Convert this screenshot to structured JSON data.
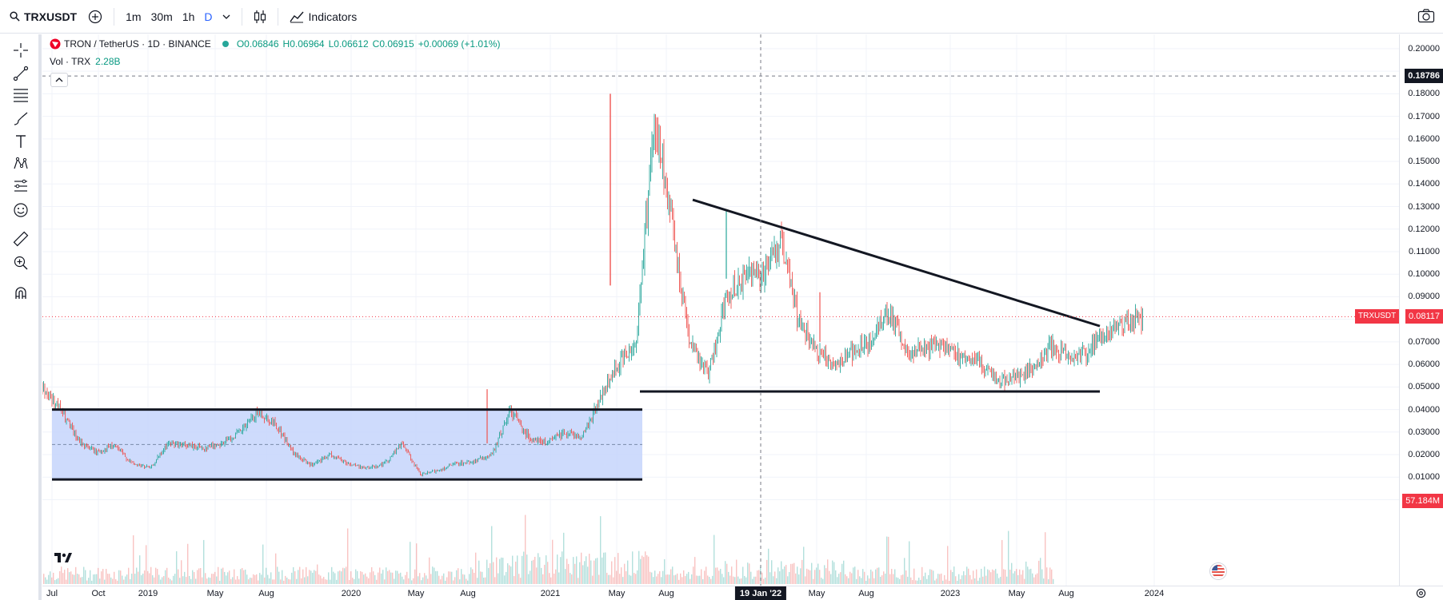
{
  "toolbar": {
    "symbol": "TRXUSDT",
    "intervals": [
      "1m",
      "30m",
      "1h",
      "D"
    ],
    "active_interval": "D",
    "indicators_label": "Indicators"
  },
  "legend": {
    "title": "TRON / TetherUS · 1D · BINANCE",
    "open": "O0.06846",
    "high": "H0.06964",
    "low": "L0.06612",
    "close": "C0.06915",
    "change": "+0.00069 (+1.01%)",
    "volume_label": "Vol · TRX",
    "volume_value": "2.28B"
  },
  "price_axis": {
    "ticks": [
      "0.20000",
      "0.18000",
      "0.17000",
      "0.16000",
      "0.15000",
      "0.14000",
      "0.13000",
      "0.12000",
      "0.11000",
      "0.10000",
      "0.09000",
      "0.07000",
      "0.06000",
      "0.05000",
      "0.04000",
      "0.03000",
      "0.02000",
      "0.01000",
      "-0.00000"
    ],
    "crosshair_price": "0.18786",
    "last_price": "0.08117",
    "symbol_tag": "TRXUSDT",
    "volume_tag": "57.184M"
  },
  "time_axis": {
    "ticks": [
      "Jul",
      "Oct",
      "2019",
      "May",
      "Aug",
      "2020",
      "May",
      "Aug",
      "2021",
      "May",
      "Aug",
      "May",
      "Aug",
      "2023",
      "May",
      "Aug",
      "2024"
    ],
    "crosshair_date": "19 Jan '22"
  },
  "colors": {
    "up": "#26a69a",
    "down": "#ef5350",
    "range_box": "#c5d5fb",
    "accent": "#2962ff",
    "tag": "#f23645"
  },
  "chart_data": {
    "type": "candlestick",
    "symbol": "TRXUSDT",
    "timeframe": "1D",
    "exchange": "BINANCE",
    "x_range": [
      "2018-06",
      "2024-03"
    ],
    "ylim": [
      -0.005,
      0.2
    ],
    "series": [
      {
        "name": "TRON / TetherUS",
        "approx_close": [
          [
            "2018-06",
            0.05
          ],
          [
            "2018-07",
            0.04
          ],
          [
            "2018-08",
            0.026
          ],
          [
            "2018-09",
            0.021
          ],
          [
            "2018-10",
            0.024
          ],
          [
            "2018-11",
            0.016
          ],
          [
            "2018-12",
            0.014
          ],
          [
            "2019-01",
            0.025
          ],
          [
            "2019-02",
            0.024
          ],
          [
            "2019-03",
            0.023
          ],
          [
            "2019-04",
            0.025
          ],
          [
            "2019-05",
            0.03
          ],
          [
            "2019-06",
            0.039
          ],
          [
            "2019-07",
            0.033
          ],
          [
            "2019-08",
            0.02
          ],
          [
            "2019-09",
            0.015
          ],
          [
            "2019-10",
            0.02
          ],
          [
            "2019-11",
            0.016
          ],
          [
            "2019-12",
            0.014
          ],
          [
            "2020-01",
            0.016
          ],
          [
            "2020-02",
            0.025
          ],
          [
            "2020-03",
            0.011
          ],
          [
            "2020-04",
            0.013
          ],
          [
            "2020-05",
            0.016
          ],
          [
            "2020-06",
            0.017
          ],
          [
            "2020-07",
            0.02
          ],
          [
            "2020-08",
            0.04
          ],
          [
            "2020-09",
            0.028
          ],
          [
            "2020-10",
            0.025
          ],
          [
            "2020-11",
            0.03
          ],
          [
            "2020-12",
            0.028
          ],
          [
            "2021-01",
            0.045
          ],
          [
            "2021-02",
            0.06
          ],
          [
            "2021-03",
            0.07
          ],
          [
            "2021-04",
            0.17
          ],
          [
            "2021-05",
            0.12
          ],
          [
            "2021-06",
            0.07
          ],
          [
            "2021-07",
            0.055
          ],
          [
            "2021-08",
            0.09
          ],
          [
            "2021-09",
            0.1
          ],
          [
            "2021-10",
            0.1
          ],
          [
            "2021-11",
            0.115
          ],
          [
            "2021-12",
            0.08
          ],
          [
            "2022-01",
            0.065
          ],
          [
            "2022-02",
            0.06
          ],
          [
            "2022-03",
            0.065
          ],
          [
            "2022-04",
            0.07
          ],
          [
            "2022-05",
            0.085
          ],
          [
            "2022-06",
            0.065
          ],
          [
            "2022-07",
            0.067
          ],
          [
            "2022-08",
            0.07
          ],
          [
            "2022-09",
            0.063
          ],
          [
            "2022-10",
            0.062
          ],
          [
            "2022-11",
            0.052
          ],
          [
            "2022-12",
            0.054
          ],
          [
            "2023-01",
            0.058
          ],
          [
            "2023-02",
            0.068
          ],
          [
            "2023-03",
            0.063
          ],
          [
            "2023-04",
            0.065
          ],
          [
            "2023-05",
            0.073
          ],
          [
            "2023-06",
            0.078
          ],
          [
            "2023-07",
            0.081
          ]
        ]
      }
    ],
    "annotations": [
      {
        "type": "rectangle",
        "label": "range box",
        "from": "2018-07",
        "to": "2021-03",
        "y_range": [
          0.009,
          0.04
        ]
      },
      {
        "type": "trendline",
        "label": "descending resistance",
        "from": [
          "2021-10",
          0.133
        ],
        "to": [
          "2023-09",
          0.077
        ]
      },
      {
        "type": "trendline",
        "label": "horizontal support",
        "from": [
          "2021-06",
          0.048
        ],
        "to": [
          "2023-09",
          0.048
        ]
      }
    ]
  }
}
